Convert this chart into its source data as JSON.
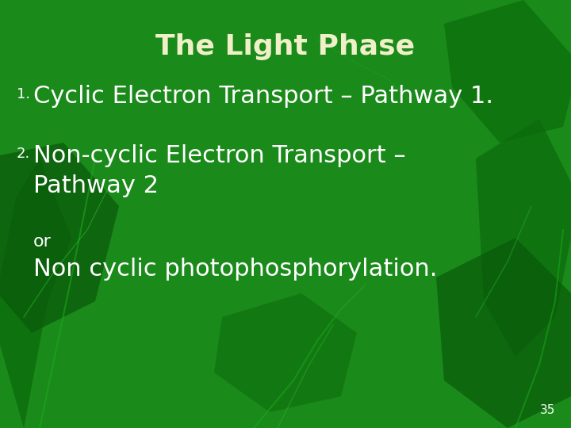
{
  "title": "The Light Phase",
  "title_color": "#f0f0c8",
  "title_fontsize": 26,
  "bg_color": "#1a8a1a",
  "bg_dark": "#0a5a0a",
  "item1_num": "1.",
  "item1_text": "Cyclic Electron Transport – Pathway 1.",
  "item2_num": "2.",
  "item2_text_line1": "Non-cyclic Electron Transport –",
  "item2_text_line2": "Pathway 2",
  "or_text": "or",
  "noncyclic_text": "Non cyclic photophosphorylation.",
  "text_color": "#ffffff",
  "num_color": "#ffffff",
  "body_fontsize": 22,
  "small_fontsize": 16,
  "page_num": "35",
  "page_num_color": "#ffffff",
  "page_num_fontsize": 11,
  "leaf_color": "#0d700d",
  "leaf_edge_color": "#0a550a"
}
